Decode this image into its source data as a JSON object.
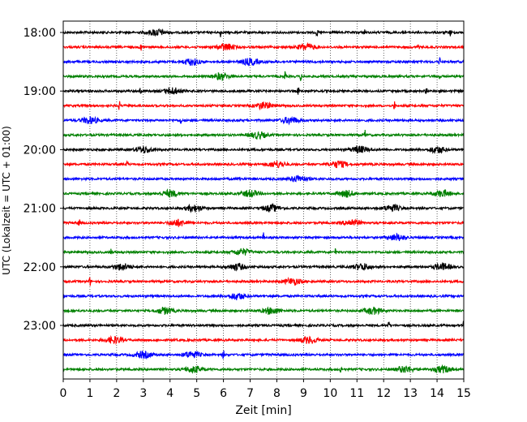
{
  "chart_data": {
    "type": "line",
    "title": "",
    "xlabel": "Zeit  [min]",
    "ylabel": "UTC (Lokalzeit = UTC + 01:00)",
    "xlim": [
      0,
      15
    ],
    "x_ticks": [
      "0",
      "1",
      "2",
      "3",
      "4",
      "5",
      "6",
      "7",
      "8",
      "9",
      "10",
      "11",
      "12",
      "13",
      "14",
      "15"
    ],
    "y_ticks": [
      "18:00",
      "19:00",
      "20:00",
      "21:00",
      "22:00",
      "23:00"
    ],
    "grid": "vertical dotted at each minute",
    "colors": [
      "#000000",
      "#ff0000",
      "#0000ff",
      "#008000"
    ],
    "traces": [
      {
        "time": "18:00",
        "color": "#000000",
        "events": [
          {
            "t": 5.9,
            "kind": "spike"
          },
          {
            "t": 9.5,
            "kind": "spike"
          },
          {
            "t": 11.3,
            "kind": "spike"
          },
          {
            "t": 14.5,
            "kind": "spike"
          },
          {
            "t": 3.5,
            "kind": "burst"
          }
        ]
      },
      {
        "time": "18:15",
        "color": "#ff0000",
        "events": [
          {
            "t": 6.1,
            "kind": "burst"
          },
          {
            "t": 9.1,
            "kind": "burst"
          },
          {
            "t": 2.9,
            "kind": "spike"
          },
          {
            "t": 13.3,
            "kind": "spike"
          }
        ]
      },
      {
        "time": "18:30",
        "color": "#0000ff",
        "events": [
          {
            "t": 7.0,
            "kind": "burst"
          },
          {
            "t": 14.1,
            "kind": "spike"
          },
          {
            "t": 4.8,
            "kind": "burst"
          }
        ]
      },
      {
        "time": "18:45",
        "color": "#008000",
        "events": [
          {
            "t": 8.3,
            "kind": "spike"
          },
          {
            "t": 8.9,
            "kind": "spike"
          },
          {
            "t": 14.1,
            "kind": "spike"
          },
          {
            "t": 5.9,
            "kind": "burst"
          }
        ]
      },
      {
        "time": "19:00",
        "color": "#000000",
        "events": [
          {
            "t": 2.9,
            "kind": "spike"
          },
          {
            "t": 8.8,
            "kind": "spike"
          },
          {
            "t": 13.6,
            "kind": "spike"
          },
          {
            "t": 4.1,
            "kind": "burst"
          }
        ]
      },
      {
        "time": "19:15",
        "color": "#ff0000",
        "events": [
          {
            "t": 2.1,
            "kind": "spike"
          },
          {
            "t": 12.4,
            "kind": "spike"
          },
          {
            "t": 7.5,
            "kind": "burst"
          }
        ]
      },
      {
        "time": "19:30",
        "color": "#0000ff",
        "events": [
          {
            "t": 1.0,
            "kind": "burst"
          },
          {
            "t": 4.4,
            "kind": "spike"
          },
          {
            "t": 8.5,
            "kind": "burst"
          }
        ]
      },
      {
        "time": "19:45",
        "color": "#008000",
        "events": [
          {
            "t": 7.3,
            "kind": "burst"
          },
          {
            "t": 11.3,
            "kind": "spike"
          }
        ]
      },
      {
        "time": "20:00",
        "color": "#000000",
        "events": [
          {
            "t": 3.0,
            "kind": "burst"
          },
          {
            "t": 11.1,
            "kind": "burst"
          },
          {
            "t": 14.0,
            "kind": "burst"
          }
        ]
      },
      {
        "time": "20:15",
        "color": "#ff0000",
        "events": [
          {
            "t": 2.4,
            "kind": "spike"
          },
          {
            "t": 8.0,
            "kind": "burst"
          },
          {
            "t": 10.3,
            "kind": "burst"
          }
        ]
      },
      {
        "time": "20:30",
        "color": "#0000ff",
        "events": [
          {
            "t": 6.6,
            "kind": "spike"
          },
          {
            "t": 8.8,
            "kind": "burst"
          }
        ]
      },
      {
        "time": "20:45",
        "color": "#008000",
        "events": [
          {
            "t": 4.0,
            "kind": "burst"
          },
          {
            "t": 7.0,
            "kind": "burst"
          },
          {
            "t": 10.6,
            "kind": "burst"
          },
          {
            "t": 14.2,
            "kind": "burst"
          }
        ]
      },
      {
        "time": "21:00",
        "color": "#000000",
        "events": [
          {
            "t": 4.9,
            "kind": "burst"
          },
          {
            "t": 7.8,
            "kind": "burst"
          },
          {
            "t": 12.3,
            "kind": "burst"
          }
        ]
      },
      {
        "time": "21:15",
        "color": "#ff0000",
        "events": [
          {
            "t": 0.6,
            "kind": "spike"
          },
          {
            "t": 4.3,
            "kind": "burst"
          },
          {
            "t": 10.8,
            "kind": "burst"
          }
        ]
      },
      {
        "time": "21:30",
        "color": "#0000ff",
        "events": [
          {
            "t": 7.5,
            "kind": "spike"
          },
          {
            "t": 12.5,
            "kind": "burst"
          }
        ]
      },
      {
        "time": "21:45",
        "color": "#008000",
        "events": [
          {
            "t": 1.8,
            "kind": "spike"
          },
          {
            "t": 6.7,
            "kind": "burst"
          },
          {
            "t": 10.2,
            "kind": "spike"
          }
        ]
      },
      {
        "time": "22:00",
        "color": "#000000",
        "events": [
          {
            "t": 2.2,
            "kind": "burst"
          },
          {
            "t": 6.5,
            "kind": "burst"
          },
          {
            "t": 11.2,
            "kind": "burst"
          },
          {
            "t": 14.2,
            "kind": "burst"
          }
        ]
      },
      {
        "time": "22:15",
        "color": "#ff0000",
        "events": [
          {
            "t": 1.0,
            "kind": "spike"
          },
          {
            "t": 8.6,
            "kind": "burst"
          }
        ]
      },
      {
        "time": "22:30",
        "color": "#0000ff",
        "events": [
          {
            "t": 6.5,
            "kind": "burst"
          }
        ]
      },
      {
        "time": "22:45",
        "color": "#008000",
        "events": [
          {
            "t": 3.8,
            "kind": "burst"
          },
          {
            "t": 7.8,
            "kind": "burst"
          },
          {
            "t": 11.6,
            "kind": "burst"
          }
        ]
      },
      {
        "time": "23:00",
        "color": "#000000",
        "events": [
          {
            "t": 12.2,
            "kind": "spike"
          },
          {
            "t": 15.0,
            "kind": "spike"
          }
        ]
      },
      {
        "time": "23:15",
        "color": "#ff0000",
        "events": [
          {
            "t": 1.9,
            "kind": "burst"
          },
          {
            "t": 9.2,
            "kind": "burst"
          }
        ]
      },
      {
        "time": "23:30",
        "color": "#0000ff",
        "events": [
          {
            "t": 4.8,
            "kind": "burst"
          },
          {
            "t": 6.0,
            "kind": "spike"
          },
          {
            "t": 3.0,
            "kind": "burst"
          }
        ]
      },
      {
        "time": "23:45",
        "color": "#008000",
        "events": [
          {
            "t": 4.9,
            "kind": "burst"
          },
          {
            "t": 10.4,
            "kind": "spike"
          },
          {
            "t": 12.8,
            "kind": "burst"
          },
          {
            "t": 14.2,
            "kind": "burst"
          }
        ]
      }
    ]
  }
}
